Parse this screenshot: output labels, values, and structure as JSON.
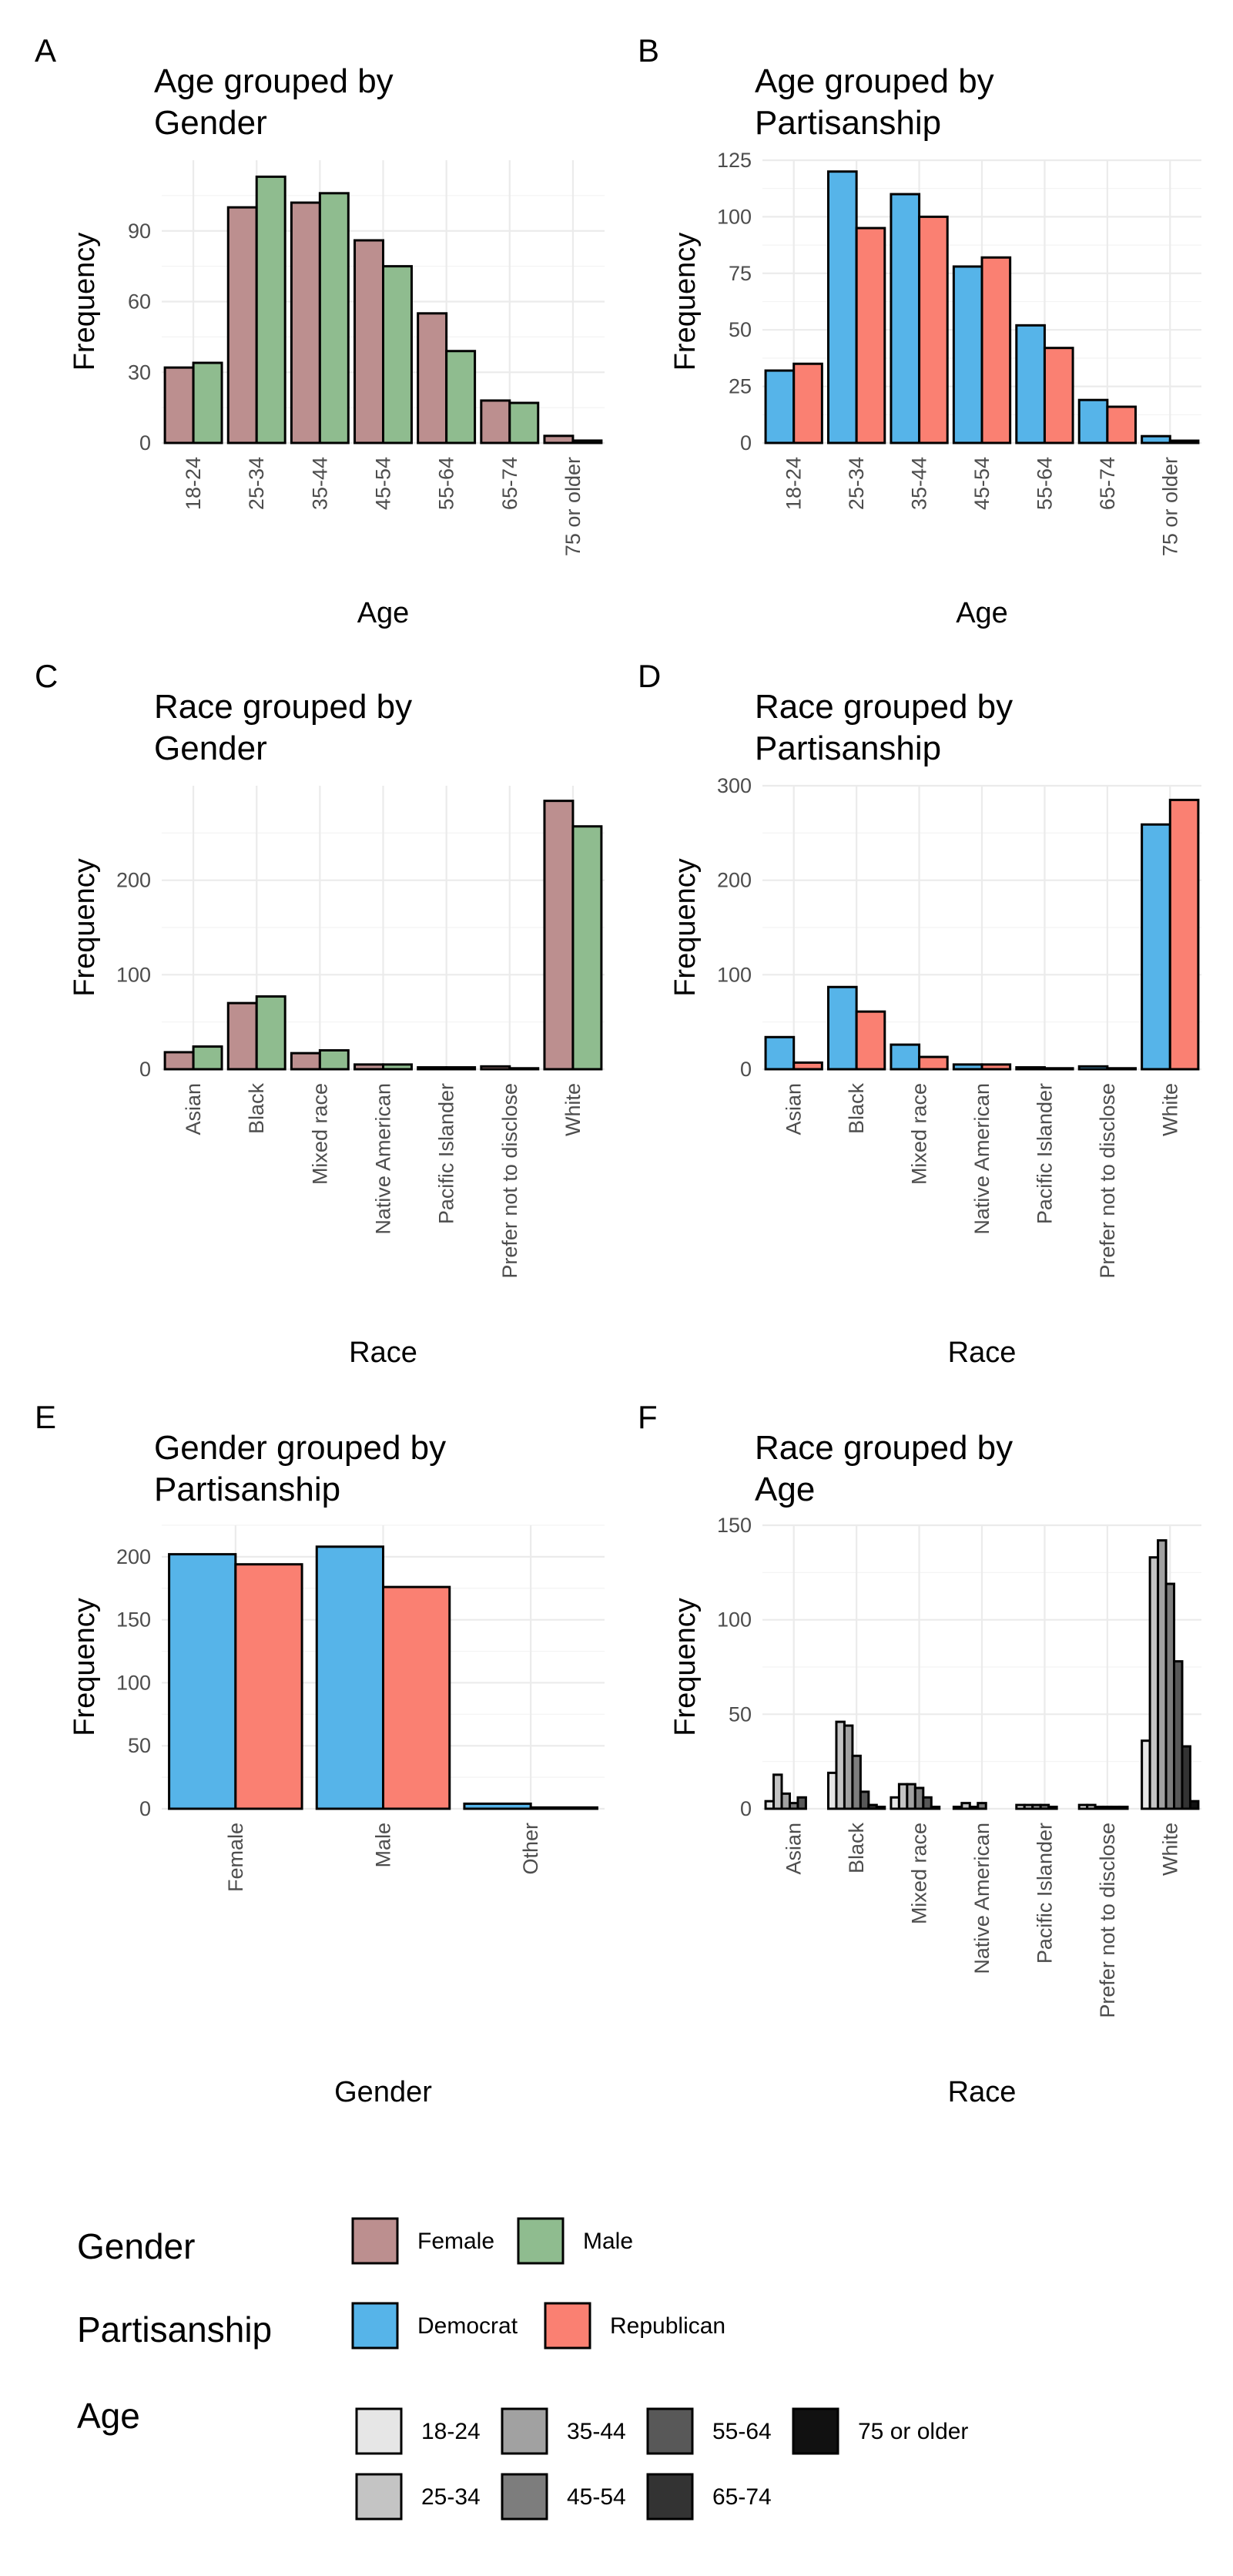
{
  "colors": {
    "Female": "#bc8f8f",
    "Male": "#8fbc8f",
    "Democrat": "#56b4e9",
    "Republican": "#fa8072",
    "18-24": "#e6e6e6",
    "25-34": "#c4c4c4",
    "35-44": "#a1a1a1",
    "45-54": "#7d7d7d",
    "55-64": "#585858",
    "65-74": "#333333",
    "75 or older": "#111111"
  },
  "chart_data": [
    {
      "panel": "A",
      "type": "bar",
      "title": "Age grouped by\nGender",
      "xlabel": "Age",
      "ylabel": "Frequency",
      "categories": [
        "18-24",
        "25-34",
        "35-44",
        "45-54",
        "55-64",
        "65-74",
        "75 or older"
      ],
      "series": [
        {
          "name": "Female",
          "values": [
            32,
            100,
            102,
            86,
            55,
            18,
            3
          ]
        },
        {
          "name": "Male",
          "values": [
            34,
            113,
            106,
            75,
            39,
            17,
            1
          ]
        }
      ],
      "ylim": [
        0,
        120
      ],
      "yticks": [
        0,
        30,
        60,
        90
      ],
      "grid": true
    },
    {
      "panel": "B",
      "type": "bar",
      "title": "Age grouped by\nPartisanship",
      "xlabel": "Age",
      "ylabel": "Frequency",
      "categories": [
        "18-24",
        "25-34",
        "35-44",
        "45-54",
        "55-64",
        "65-74",
        "75 or older"
      ],
      "series": [
        {
          "name": "Democrat",
          "values": [
            32,
            120,
            110,
            78,
            52,
            19,
            3
          ]
        },
        {
          "name": "Republican",
          "values": [
            35,
            95,
            100,
            82,
            42,
            16,
            1
          ]
        }
      ],
      "ylim": [
        0,
        125
      ],
      "yticks": [
        0,
        25,
        50,
        75,
        100,
        125
      ],
      "grid": true
    },
    {
      "panel": "C",
      "type": "bar",
      "title": "Race grouped by\nGender",
      "xlabel": "Race",
      "ylabel": "Frequency",
      "categories": [
        "Asian",
        "Black",
        "Mixed race",
        "Native American",
        "Pacific Islander",
        "Prefer not to disclose",
        "White"
      ],
      "series": [
        {
          "name": "Female",
          "values": [
            18,
            70,
            17,
            5,
            2,
            3,
            284
          ]
        },
        {
          "name": "Male",
          "values": [
            24,
            77,
            20,
            5,
            2,
            1,
            257
          ]
        }
      ],
      "ylim": [
        0,
        300
      ],
      "yticks": [
        0,
        100,
        200
      ],
      "grid": true
    },
    {
      "panel": "D",
      "type": "bar",
      "title": "Race grouped by\nPartisanship",
      "xlabel": "Race",
      "ylabel": "Frequency",
      "categories": [
        "Asian",
        "Black",
        "Mixed race",
        "Native American",
        "Pacific Islander",
        "Prefer not to disclose",
        "White"
      ],
      "series": [
        {
          "name": "Democrat",
          "values": [
            34,
            87,
            26,
            5,
            2,
            3,
            259
          ]
        },
        {
          "name": "Republican",
          "values": [
            7,
            61,
            13,
            5,
            1,
            1,
            285
          ]
        }
      ],
      "ylim": [
        0,
        300
      ],
      "yticks": [
        0,
        100,
        200,
        300
      ],
      "grid": true
    },
    {
      "panel": "E",
      "type": "bar",
      "title": "Gender grouped by\nPartisanship",
      "xlabel": "Gender",
      "ylabel": "Frequency",
      "categories": [
        "Female",
        "Male",
        "Other"
      ],
      "series": [
        {
          "name": "Democrat",
          "values": [
            202,
            208,
            4
          ]
        },
        {
          "name": "Republican",
          "values": [
            194,
            176,
            1
          ]
        }
      ],
      "ylim": [
        0,
        225
      ],
      "yticks": [
        0,
        50,
        100,
        150,
        200
      ],
      "grid": true
    },
    {
      "panel": "F",
      "type": "bar",
      "title": "Race grouped by\nAge",
      "xlabel": "Race",
      "ylabel": "Frequency",
      "categories": [
        "Asian",
        "Black",
        "Mixed race",
        "Native American",
        "Pacific Islander",
        "Prefer not to disclose",
        "White"
      ],
      "series": [
        {
          "name": "18-24",
          "values": [
            4,
            19,
            6,
            1,
            2,
            2,
            36
          ]
        },
        {
          "name": "25-34",
          "values": [
            18,
            46,
            13,
            3,
            2,
            2,
            133
          ]
        },
        {
          "name": "35-44",
          "values": [
            8,
            44,
            13,
            1,
            2,
            1,
            142
          ]
        },
        {
          "name": "45-54",
          "values": [
            3,
            28,
            11,
            3,
            2,
            1,
            119
          ]
        },
        {
          "name": "55-64",
          "values": [
            6,
            9,
            6,
            0,
            1,
            1,
            78
          ]
        },
        {
          "name": "65-74",
          "values": [
            0,
            2,
            1,
            0,
            0,
            1,
            33
          ]
        },
        {
          "name": "75 or older",
          "values": [
            0,
            1,
            0,
            0,
            0,
            0,
            4
          ]
        }
      ],
      "ylim": [
        0,
        150
      ],
      "yticks": [
        0,
        50,
        100,
        150
      ],
      "grid": true
    }
  ],
  "legend": [
    {
      "title": "Gender",
      "entries": [
        "Female",
        "Male"
      ]
    },
    {
      "title": "Partisanship",
      "entries": [
        "Democrat",
        "Republican"
      ]
    },
    {
      "title": "Age",
      "entries": [
        "18-24",
        "25-34",
        "35-44",
        "45-54",
        "55-64",
        "65-74",
        "75 or older"
      ]
    }
  ]
}
